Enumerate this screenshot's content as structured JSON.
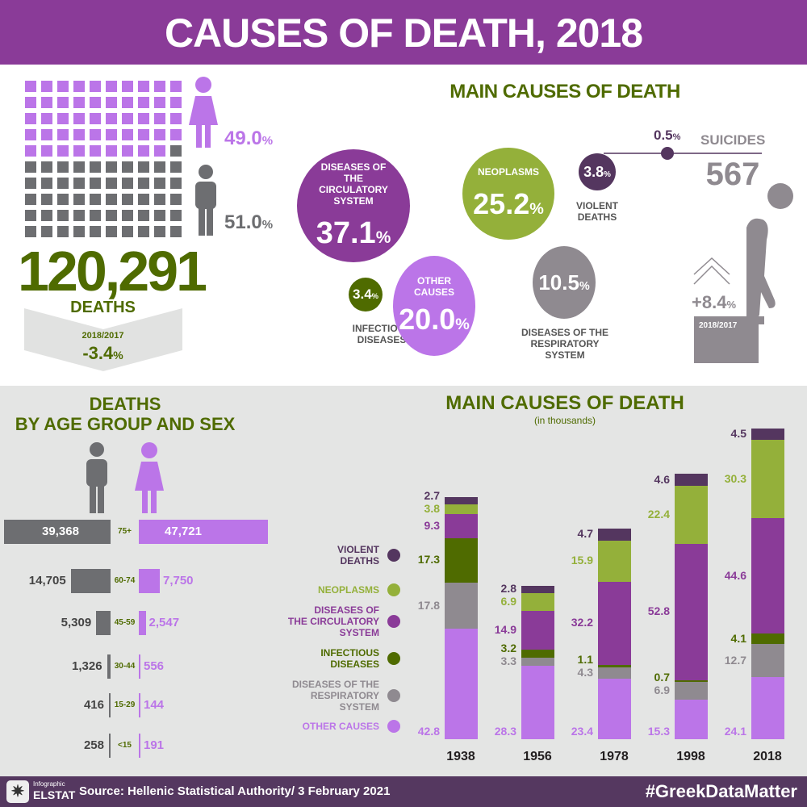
{
  "title": "CAUSES OF DEATH, 2018",
  "colors": {
    "header": "#8a3b98",
    "female": "#bb75e8",
    "male": "#6d6e71",
    "green": "#4f6b00",
    "neoplasms": "#94b03a",
    "circulatory": "#8a3b98",
    "violent": "#54365f",
    "respiratory": "#8f8a90",
    "other": "#bb75e8",
    "infectious": "#4f6b00"
  },
  "summary": {
    "female_pct": "49.0",
    "male_pct": "51.0",
    "female_squares": 49,
    "total": "120,291",
    "total_label": "DEATHS",
    "change_label": "2018/2017",
    "change": "-3.4",
    "pct_sign": "%"
  },
  "main_causes": {
    "title": "MAIN CAUSES OF DEATH",
    "circulatory": {
      "label": "DISEASES OF THE CIRCULATORY SYSTEM",
      "value": "37.1"
    },
    "neoplasms": {
      "label": "NEOPLASMS",
      "value": "25.2"
    },
    "violent": {
      "label": "VIOLENT DEATHS",
      "value": "3.8"
    },
    "infectious": {
      "label": "INFECTIOUS DISEASES",
      "value": "3.4"
    },
    "other": {
      "label": "OTHER CAUSES",
      "value": "20.0"
    },
    "respiratory": {
      "label": "DISEASES OF THE RESPIRATORY SYSTEM",
      "value": "10.5"
    },
    "suicides": {
      "label": "SUICIDES",
      "pct": "0.5",
      "count": "567",
      "change": "+8.4",
      "change_label": "2018/2017"
    }
  },
  "age": {
    "title1": "DEATHS",
    "title2": "BY AGE GROUP AND SEX",
    "groups": [
      {
        "group": "75+",
        "male": 39368,
        "female": 47721,
        "male_label": "39,368",
        "female_label": "47,721"
      },
      {
        "group": "60-74",
        "male": 14705,
        "female": 7750,
        "male_label": "14,705",
        "female_label": "7,750"
      },
      {
        "group": "45-59",
        "male": 5309,
        "female": 2547,
        "male_label": "5,309",
        "female_label": "2,547"
      },
      {
        "group": "30-44",
        "male": 1326,
        "female": 556,
        "male_label": "1,326",
        "female_label": "556"
      },
      {
        "group": "15-29",
        "male": 416,
        "female": 144,
        "male_label": "416",
        "female_label": "144"
      },
      {
        "group": "<15",
        "male": 258,
        "female": 191,
        "male_label": "258",
        "female_label": "191"
      }
    ]
  },
  "chart_data": {
    "type": "bar",
    "stacked": true,
    "title": "MAIN CAUSES OF DEATH",
    "subtitle": "(in thousands)",
    "categories": [
      "1938",
      "1956",
      "1978",
      "1998",
      "2018"
    ],
    "series": [
      {
        "name": "OTHER CAUSES",
        "key": "other",
        "values": [
          42.8,
          28.3,
          23.4,
          15.3,
          24.1
        ]
      },
      {
        "name": "DISEASES OF THE RESPIRATORY SYSTEM",
        "key": "respiratory",
        "values": [
          17.8,
          3.3,
          4.3,
          6.9,
          12.7
        ]
      },
      {
        "name": "INFECTIOUS DISEASES",
        "key": "infectious",
        "values": [
          17.3,
          3.2,
          1.1,
          0.7,
          4.1
        ]
      },
      {
        "name": "DISEASES OF THE CIRCULATORY SYSTEM",
        "key": "circulatory",
        "values": [
          9.3,
          14.9,
          32.2,
          52.8,
          44.6
        ]
      },
      {
        "name": "NEOPLASMS",
        "key": "neoplasms",
        "values": [
          3.8,
          6.9,
          15.9,
          22.4,
          30.3
        ]
      },
      {
        "name": "VIOLENT DEATHS",
        "key": "violent",
        "values": [
          2.7,
          2.8,
          4.7,
          4.6,
          4.5
        ]
      }
    ],
    "legend": [
      "VIOLENT DEATHS",
      "NEOPLASMS",
      "DISEASES OF THE CIRCULATORY SYSTEM",
      "INFECTIOUS DISEASES",
      "DISEASES OF THE RESPIRATORY SYSTEM",
      "OTHER CAUSES"
    ]
  },
  "footer": {
    "logo_top": "Infographic",
    "logo_bottom": "ELSTAT",
    "source": "Source: Hellenic Statistical Authority/ 3 February 2021",
    "hashtag": "#GreekDataMatter"
  }
}
